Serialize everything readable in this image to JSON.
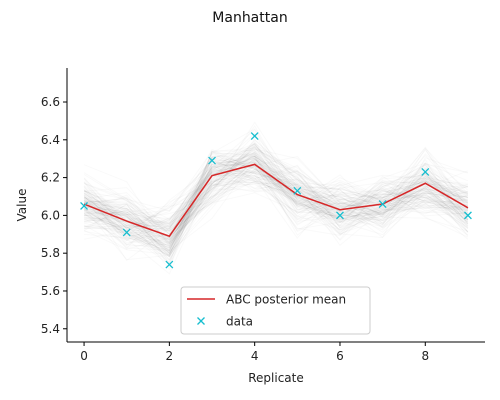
{
  "chart_data": {
    "type": "line",
    "title": "Manhattan",
    "xlabel": "Replicate",
    "ylabel": "Value",
    "xlim": [
      -0.4,
      9.4
    ],
    "ylim": [
      5.33,
      6.78
    ],
    "x_ticks": [
      0,
      2,
      4,
      6,
      8
    ],
    "y_ticks": [
      5.4,
      5.6,
      5.8,
      6.0,
      6.2,
      6.4,
      6.6
    ],
    "y_tick_labels": [
      "5.4",
      "5.6",
      "5.8",
      "6.0",
      "6.2",
      "6.4",
      "6.6"
    ],
    "grid": false,
    "legend_position": "lower center",
    "x": [
      0,
      1,
      2,
      3,
      4,
      5,
      6,
      7,
      8,
      9
    ],
    "series": [
      {
        "name": "ABC posterior mean",
        "kind": "line",
        "color": "#d62728",
        "values": [
          6.06,
          5.97,
          5.89,
          6.21,
          6.27,
          6.11,
          6.03,
          6.06,
          6.17,
          6.04
        ]
      },
      {
        "name": "data",
        "kind": "marker-x",
        "color": "#17becf",
        "values": [
          6.05,
          5.91,
          5.74,
          6.29,
          6.42,
          6.13,
          6.0,
          6.06,
          6.23,
          6.0
        ]
      }
    ],
    "posterior_band_color": "#000000"
  }
}
